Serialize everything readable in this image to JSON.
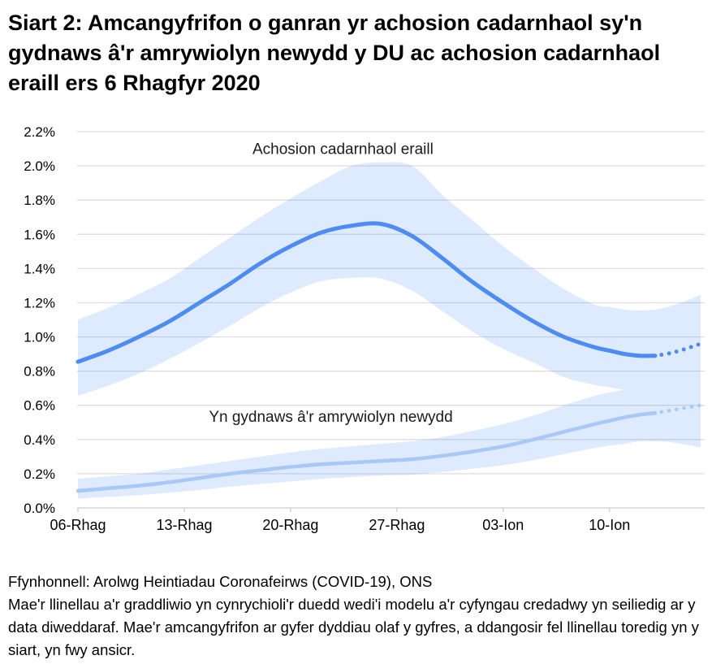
{
  "page_title": "Siart 2: Amcangyfrifon o ganran yr achosion cadarnhaol sy'n gydnaws â'r amrywiolyn newydd y DU ac achosion cadarnhaol eraill ers 6 Rhagfyr 2020",
  "footer": {
    "source": "Ffynhonnell: Arolwg Heintiadau Coronafeirws (COVID-19), ONS",
    "note": "Mae'r llinellau a'r graddliwio yn cynrychioli'r duedd wedi'i modelu a'r cyfyngau credadwy yn seiliedig ar y data diweddaraf. Mae'r amcangyfrifon ar gyfer dyddiau olaf y gyfres, a ddangosir fel llinellau toredig yn y siart, yn fwy ansicr."
  },
  "chart_data": {
    "type": "line",
    "title": "Siart 2: Amcangyfrifon o ganran yr achosion cadarnhaol sy'n gydnaws â'r amrywiolyn newydd y DU ac achosion cadarnhaol eraill ers 6 Rhagfyr 2020",
    "x_note": "day index, day 0 = 06 Rhag 2020",
    "x_tick_days": [
      0,
      7,
      14,
      21,
      28,
      35
    ],
    "x_tick_labels": [
      "06-Rhag",
      "13-Rhag",
      "20-Rhag",
      "27-Rhag",
      "03-Ion",
      "10-Ion"
    ],
    "x_range_days": [
      0,
      41
    ],
    "ylim": [
      0,
      2.2
    ],
    "y_tick_values": [
      0,
      0.2,
      0.4,
      0.6,
      0.8,
      1.0,
      1.2,
      1.4,
      1.6,
      1.8,
      2.0,
      2.2
    ],
    "y_tick_labels": [
      "0.0%",
      "0.2%",
      "0.4%",
      "0.6%",
      "0.8%",
      "1.0%",
      "1.2%",
      "1.4%",
      "1.6%",
      "1.8%",
      "2.0%",
      "2.2%"
    ],
    "grid": true,
    "legend_position": "inline-annotations",
    "solid_until_day": 38,
    "band_fill": "#4a8af4",
    "band_opacity": 0.18,
    "grid_color": "#dedede",
    "axis_color": "#cccccc",
    "point_format": "[day, value_pct, lower_ci_pct, upper_ci_pct]",
    "series": [
      {
        "name": "Achosion cadarnhaol eraill",
        "color": "#4d8cf2",
        "line_width": 5,
        "label_day": 17.45,
        "label_value": 2.07,
        "points": [
          [
            0,
            0.855,
            0.655,
            1.1
          ],
          [
            2,
            0.92,
            0.715,
            1.17
          ],
          [
            4,
            1.0,
            0.785,
            1.25
          ],
          [
            6,
            1.09,
            0.87,
            1.34
          ],
          [
            8,
            1.2,
            0.965,
            1.46
          ],
          [
            10,
            1.31,
            1.065,
            1.58
          ],
          [
            12,
            1.43,
            1.17,
            1.7
          ],
          [
            14,
            1.53,
            1.26,
            1.81
          ],
          [
            16,
            1.61,
            1.325,
            1.91
          ],
          [
            18,
            1.65,
            1.345,
            2.0
          ],
          [
            20,
            1.66,
            1.34,
            2.02
          ],
          [
            22,
            1.59,
            1.27,
            2.0
          ],
          [
            24,
            1.46,
            1.15,
            1.83
          ],
          [
            26,
            1.32,
            1.03,
            1.68
          ],
          [
            28,
            1.2,
            0.93,
            1.53
          ],
          [
            30,
            1.09,
            0.85,
            1.4
          ],
          [
            32,
            1.0,
            0.765,
            1.28
          ],
          [
            34,
            0.94,
            0.72,
            1.19
          ],
          [
            35,
            0.92,
            0.705,
            1.175
          ],
          [
            36,
            0.9,
            0.69,
            1.16
          ],
          [
            37,
            0.89,
            0.685,
            1.155
          ],
          [
            38,
            0.89,
            0.68,
            1.16
          ],
          [
            39,
            0.905,
            0.67,
            1.18
          ],
          [
            40,
            0.93,
            0.65,
            1.21
          ],
          [
            41,
            0.96,
            0.63,
            1.245
          ]
        ]
      },
      {
        "name": "Yn gydnaws â'r amrywiolyn newydd",
        "color": "#a8c8f8",
        "line_width": 4.5,
        "label_day": 16.65,
        "label_value": 0.503,
        "points": [
          [
            0,
            0.1,
            0.055,
            0.17
          ],
          [
            2,
            0.115,
            0.065,
            0.185
          ],
          [
            4,
            0.13,
            0.075,
            0.2
          ],
          [
            6,
            0.15,
            0.09,
            0.225
          ],
          [
            8,
            0.175,
            0.105,
            0.25
          ],
          [
            10,
            0.2,
            0.125,
            0.275
          ],
          [
            12,
            0.22,
            0.14,
            0.3
          ],
          [
            14,
            0.24,
            0.155,
            0.325
          ],
          [
            16,
            0.255,
            0.17,
            0.345
          ],
          [
            18,
            0.265,
            0.18,
            0.36
          ],
          [
            20,
            0.275,
            0.19,
            0.375
          ],
          [
            22,
            0.285,
            0.195,
            0.39
          ],
          [
            24,
            0.305,
            0.21,
            0.415
          ],
          [
            26,
            0.33,
            0.23,
            0.45
          ],
          [
            28,
            0.36,
            0.25,
            0.49
          ],
          [
            30,
            0.4,
            0.28,
            0.54
          ],
          [
            32,
            0.445,
            0.315,
            0.6
          ],
          [
            34,
            0.49,
            0.35,
            0.655
          ],
          [
            35,
            0.51,
            0.365,
            0.675
          ],
          [
            36,
            0.53,
            0.375,
            0.69
          ],
          [
            37,
            0.545,
            0.39,
            0.7
          ],
          [
            38,
            0.555,
            0.39,
            0.705
          ],
          [
            39,
            0.57,
            0.385,
            0.71
          ],
          [
            40,
            0.585,
            0.37,
            0.72
          ],
          [
            41,
            0.6,
            0.355,
            0.73
          ]
        ]
      }
    ]
  }
}
